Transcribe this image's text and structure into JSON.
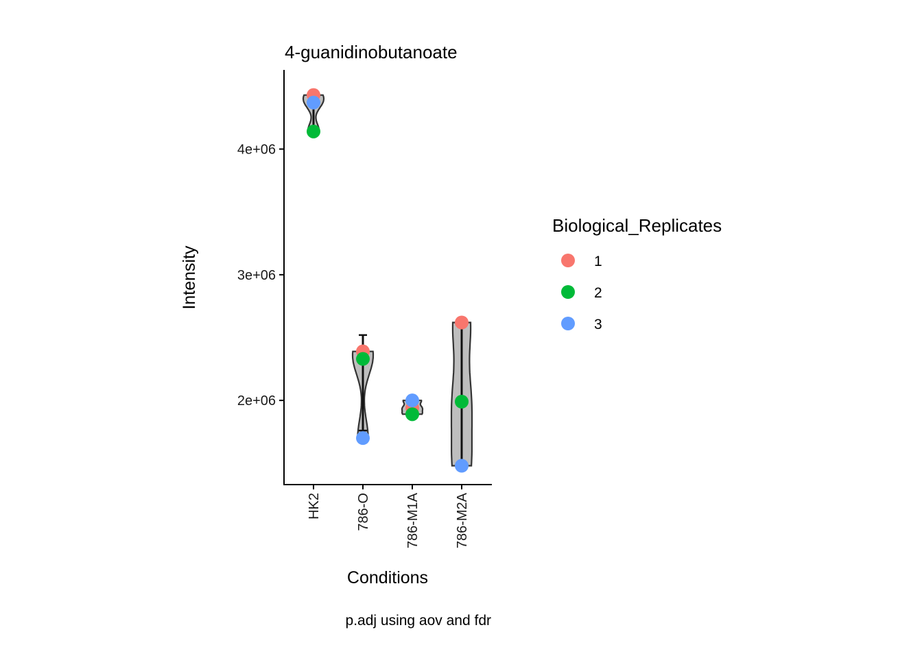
{
  "chart_data": {
    "type": "violin",
    "title": "4-guanidinobutanoate",
    "xlabel": "Conditions",
    "ylabel": "Intensity",
    "caption": "p.adj using  aov and fdr",
    "categories": [
      "HK2",
      "786-O",
      "786-M1A",
      "786-M2A"
    ],
    "y_ticks": [
      {
        "value": 2000000,
        "label": "2e+06"
      },
      {
        "value": 3000000,
        "label": "3e+06"
      },
      {
        "value": 4000000,
        "label": "4e+06"
      }
    ],
    "ylim": [
      1330000,
      4630000
    ],
    "grid": false,
    "legend": {
      "title": "Biological_Replicates",
      "position": "right",
      "entries": [
        {
          "label": "1",
          "color": "#F8766D"
        },
        {
          "label": "2",
          "color": "#00BA38"
        },
        {
          "label": "3",
          "color": "#619CFF"
        }
      ]
    },
    "series": [
      {
        "replicate": "1",
        "values": [
          4430000,
          2390000,
          1940000,
          2620000
        ]
      },
      {
        "replicate": "2",
        "values": [
          4140000,
          2330000,
          1890000,
          1990000
        ]
      },
      {
        "replicate": "3",
        "values": [
          4370000,
          1700000,
          2000000,
          1480000
        ]
      }
    ],
    "error_bars": [
      {
        "category": "HK2",
        "low": 4140000,
        "high": 4430000
      },
      {
        "category": "786-O",
        "low": 1760000,
        "high": 2520000
      },
      {
        "category": "786-M1A",
        "low": 1890000,
        "high": 2000000
      },
      {
        "category": "786-M2A",
        "low": 1480000,
        "high": 2620000
      }
    ],
    "violin_fill": "#bebebe",
    "violin_outline": "#333333"
  }
}
